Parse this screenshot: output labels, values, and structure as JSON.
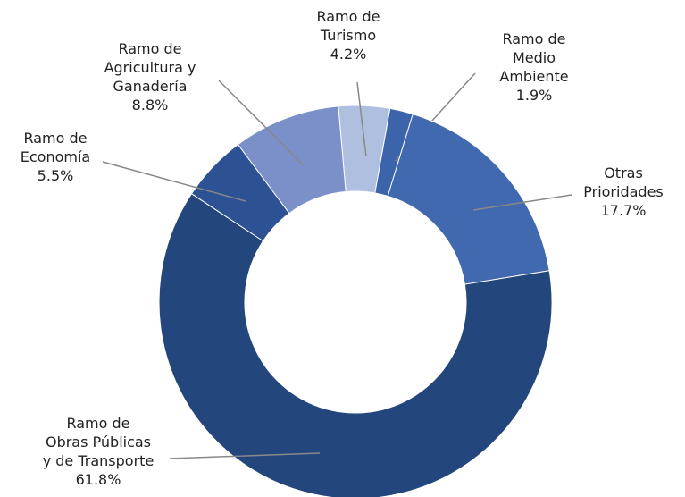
{
  "chart_data": {
    "type": "donut",
    "categories": [
      "Ramo de\nTurismo",
      "Ramo de\nMedio\nAmbiente",
      "Otras\nPrioridades",
      "Ramo de\nObras Públicas\ny de Transporte",
      "Ramo de\nEconomía",
      "Ramo de\nAgricultura y\nGanadería"
    ],
    "values": [
      4.2,
      1.9,
      17.7,
      61.8,
      5.5,
      8.8
    ],
    "value_labels": [
      "4.2%",
      "1.9%",
      "17.7%",
      "61.8%",
      "5.5%",
      "8.8%"
    ],
    "colors": [
      "#aebfe0",
      "#3c64ab",
      "#4169b0",
      "#23467c",
      "#2d5294",
      "#7b8fc8"
    ]
  }
}
